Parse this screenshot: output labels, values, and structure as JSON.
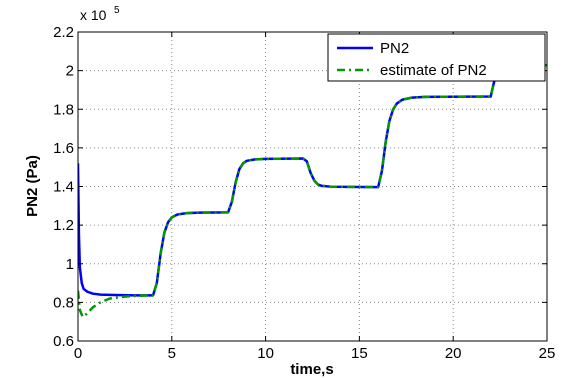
{
  "chart_data": {
    "type": "line",
    "title": "",
    "xlabel": "time,s",
    "ylabel": "PN2 (Pa)",
    "y_multiplier": {
      "base": "x 10",
      "exponent": "5"
    },
    "xlim": [
      0,
      25
    ],
    "ylim": [
      0.6,
      2.2
    ],
    "x_ticks": [
      0,
      5,
      10,
      15,
      20,
      25
    ],
    "y_ticks": [
      0.6,
      0.8,
      1,
      1.2,
      1.4,
      1.6,
      1.8,
      2,
      2.2
    ],
    "x_tick_labels": [
      "0",
      "5",
      "10",
      "15",
      "20",
      "25"
    ],
    "y_tick_labels": [
      "0.6",
      "0.8",
      "1",
      "1.2",
      "1.4",
      "1.6",
      "1.8",
      "2",
      "2.2"
    ],
    "grid": true,
    "legend_position": "top-right",
    "series": [
      {
        "name": "PN2",
        "color": "#0000ff",
        "style": "solid",
        "points": [
          [
            0,
            1.52
          ],
          [
            0.05,
            1.15
          ],
          [
            0.1,
            0.98
          ],
          [
            0.2,
            0.9
          ],
          [
            0.3,
            0.87
          ],
          [
            0.5,
            0.855
          ],
          [
            0.8,
            0.845
          ],
          [
            1.2,
            0.84
          ],
          [
            2,
            0.838
          ],
          [
            3,
            0.836
          ],
          [
            4.0,
            0.836
          ],
          [
            4.2,
            0.9
          ],
          [
            4.4,
            1.05
          ],
          [
            4.6,
            1.16
          ],
          [
            4.8,
            1.215
          ],
          [
            5.0,
            1.24
          ],
          [
            5.3,
            1.255
          ],
          [
            5.8,
            1.262
          ],
          [
            6.5,
            1.265
          ],
          [
            8.0,
            1.266
          ],
          [
            8.2,
            1.32
          ],
          [
            8.4,
            1.42
          ],
          [
            8.6,
            1.49
          ],
          [
            8.8,
            1.52
          ],
          [
            9.0,
            1.533
          ],
          [
            9.4,
            1.54
          ],
          [
            10,
            1.543
          ],
          [
            12.0,
            1.545
          ],
          [
            12.2,
            1.53
          ],
          [
            12.4,
            1.47
          ],
          [
            12.6,
            1.43
          ],
          [
            12.8,
            1.41
          ],
          [
            13.0,
            1.403
          ],
          [
            13.5,
            1.399
          ],
          [
            16.0,
            1.397
          ],
          [
            16.2,
            1.48
          ],
          [
            16.4,
            1.63
          ],
          [
            16.6,
            1.74
          ],
          [
            16.8,
            1.8
          ],
          [
            17.0,
            1.83
          ],
          [
            17.3,
            1.85
          ],
          [
            17.8,
            1.86
          ],
          [
            18.5,
            1.864
          ],
          [
            22.0,
            1.866
          ],
          [
            22.15,
            1.93
          ],
          [
            22.35,
            2.0
          ],
          [
            22.6,
            2.02
          ],
          [
            23,
            2.026
          ],
          [
            25,
            2.028
          ]
        ]
      },
      {
        "name": "estimate of PN2",
        "color": "#009900",
        "style": "dash-dot",
        "points": [
          [
            0,
            0.86
          ],
          [
            0.1,
            0.76
          ],
          [
            0.25,
            0.725
          ],
          [
            0.45,
            0.74
          ],
          [
            0.8,
            0.775
          ],
          [
            1.2,
            0.8
          ],
          [
            1.7,
            0.82
          ],
          [
            2.5,
            0.83
          ],
          [
            3.2,
            0.834
          ],
          [
            4.0,
            0.836
          ],
          [
            4.2,
            0.9
          ],
          [
            4.4,
            1.05
          ],
          [
            4.6,
            1.16
          ],
          [
            4.8,
            1.215
          ],
          [
            5.0,
            1.24
          ],
          [
            5.3,
            1.255
          ],
          [
            5.8,
            1.262
          ],
          [
            6.5,
            1.265
          ],
          [
            8.0,
            1.266
          ],
          [
            8.2,
            1.32
          ],
          [
            8.4,
            1.42
          ],
          [
            8.6,
            1.49
          ],
          [
            8.8,
            1.52
          ],
          [
            9.0,
            1.533
          ],
          [
            9.4,
            1.54
          ],
          [
            10,
            1.543
          ],
          [
            12.0,
            1.545
          ],
          [
            12.2,
            1.53
          ],
          [
            12.4,
            1.47
          ],
          [
            12.6,
            1.43
          ],
          [
            12.8,
            1.41
          ],
          [
            13.0,
            1.403
          ],
          [
            13.5,
            1.399
          ],
          [
            16.0,
            1.397
          ],
          [
            16.2,
            1.48
          ],
          [
            16.4,
            1.63
          ],
          [
            16.6,
            1.74
          ],
          [
            16.8,
            1.8
          ],
          [
            17.0,
            1.83
          ],
          [
            17.3,
            1.85
          ],
          [
            17.8,
            1.86
          ],
          [
            18.5,
            1.864
          ],
          [
            22.0,
            1.866
          ],
          [
            22.15,
            1.93
          ],
          [
            22.35,
            2.0
          ],
          [
            22.6,
            2.02
          ],
          [
            23,
            2.026
          ],
          [
            25,
            2.028
          ]
        ]
      }
    ]
  }
}
